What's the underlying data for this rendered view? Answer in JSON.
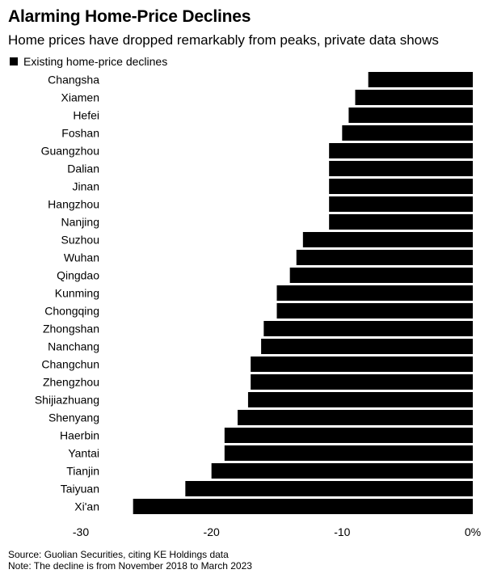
{
  "chart_data": {
    "type": "bar",
    "orientation": "horizontal",
    "title": "Alarming Home-Price Declines",
    "subtitle": "Home prices have dropped remarkably from peaks, private data shows",
    "legend": [
      "Existing home-price declines"
    ],
    "categories": [
      "Changsha",
      "Xiamen",
      "Hefei",
      "Foshan",
      "Guangzhou",
      "Dalian",
      "Jinan",
      "Hangzhou",
      "Nanjing",
      "Suzhou",
      "Wuhan",
      "Qingdao",
      "Kunming",
      "Chongqing",
      "Zhongshan",
      "Nanchang",
      "Changchun",
      "Zhengzhou",
      "Shijiazhuang",
      "Shenyang",
      "Haerbin",
      "Yantai",
      "Tianjin",
      "Taiyuan",
      "Xi'an"
    ],
    "series": [
      {
        "name": "Existing home-price declines",
        "values": [
          -8,
          -9,
          -9.5,
          -10,
          -11,
          -11,
          -11,
          -11,
          -11,
          -13,
          -13.5,
          -14,
          -15,
          -15,
          -16,
          -16.2,
          -17,
          -17,
          -17.2,
          -18,
          -19,
          -19,
          -20,
          -22,
          -26
        ]
      }
    ],
    "xlim": [
      -30,
      0
    ],
    "xticks": [
      -30,
      -20,
      -10,
      0
    ],
    "xtick_labels": [
      "-30",
      "-20",
      "-10",
      "0%"
    ],
    "xlabel": "",
    "ylabel": "",
    "color": "#000000"
  },
  "footer": {
    "source": "Source: Guolian Securities, citing KE Holdings data",
    "note": "Note: The decline is from November 2018 to March 2023"
  }
}
